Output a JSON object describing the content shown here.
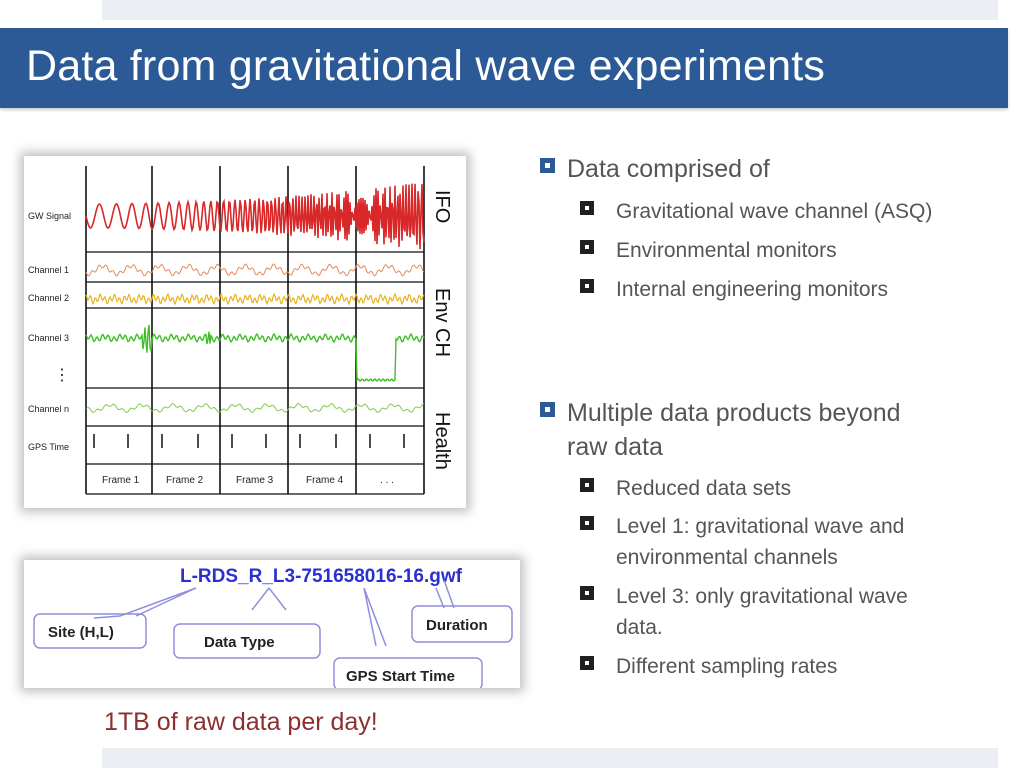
{
  "slide": {
    "title": "Data from gravitational wave experiments"
  },
  "figure_channels": {
    "rows": [
      "GW Signal",
      "Channel 1",
      "Channel 2",
      "Channel 3",
      "⋮",
      "Channel n",
      "GPS Time"
    ],
    "frames": [
      "Frame 1",
      "Frame 2",
      "Frame 3",
      "Frame 4",
      ". . ."
    ],
    "side_labels": [
      "IFO",
      "Env CH",
      "Health"
    ],
    "colors": {
      "gw": "#d8282a",
      "ch1": "#e58a5c",
      "ch2": "#e6b31e",
      "ch3": "#3fbf27",
      "chn": "#7ccc4a"
    }
  },
  "figure_filename": {
    "filename": "L-RDS_R_L3-751658016-16.gwf",
    "callouts": [
      "Site (H,L)",
      "Data Type",
      "Duration",
      "GPS Start Time"
    ],
    "colors": {
      "filename": "#2a2fd0",
      "callout_border": "#8f8fdc"
    }
  },
  "content": {
    "section1": {
      "heading": "Data comprised of",
      "items": [
        "Gravitational wave channel (ASQ)",
        "Environmental monitors",
        "Internal engineering monitors"
      ]
    },
    "section2": {
      "heading_line1": "Multiple data products beyond",
      "heading_line2": "raw data",
      "items": [
        {
          "line1": "Reduced data sets",
          "line2": ""
        },
        {
          "line1": "Level 1: gravitational wave and",
          "line2": "environmental channels"
        },
        {
          "line1": "Level 3: only gravitational wave",
          "line2": "data."
        },
        {
          "line1": "Different sampling rates",
          "line2": ""
        }
      ]
    }
  },
  "footnote": "1TB of raw data per day!"
}
